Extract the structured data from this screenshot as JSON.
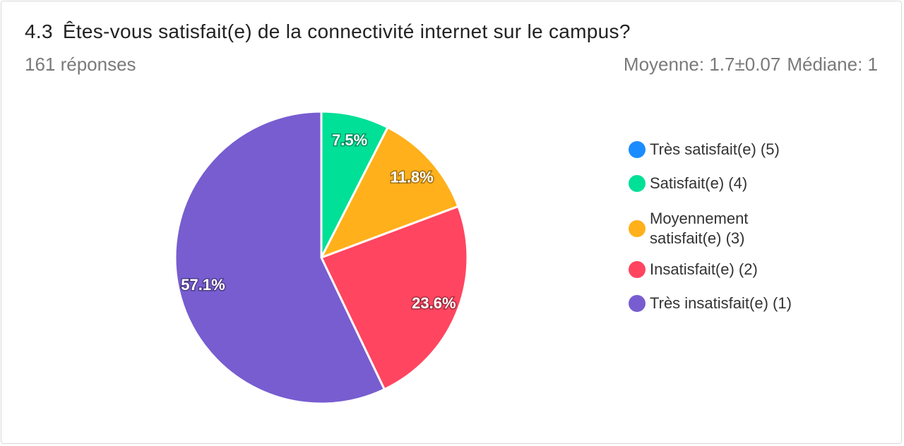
{
  "header": {
    "question_number": "4.3",
    "question_title": "Êtes-vous satisfait(e) de la connectivité internet sur le campus?",
    "responses": "161 réponses",
    "mean": "Moyenne: 1.7±0.07",
    "median": "Médiane: 1"
  },
  "chart_data": {
    "type": "pie",
    "title": "Êtes-vous satisfait(e) de la connectivité internet sur le campus?",
    "legend_position": "right",
    "slices": [
      {
        "label": "Très satisfait(e) (5)",
        "value": 0.0,
        "display": "",
        "color": "#1a8cff"
      },
      {
        "label": "Satisfait(e) (4)",
        "value": 7.5,
        "display": "7.5%",
        "color": "#00e096"
      },
      {
        "label": "Moyennement satisfait(e) (3)",
        "value": 11.8,
        "display": "11.8%",
        "color": "#ffb01a"
      },
      {
        "label": "Insatisfait(e) (2)",
        "value": 23.6,
        "display": "23.6%",
        "color": "#ff4560"
      },
      {
        "label": "Très insatisfait(e) (1)",
        "value": 57.1,
        "display": "57.1%",
        "color": "#775dd0"
      }
    ]
  }
}
